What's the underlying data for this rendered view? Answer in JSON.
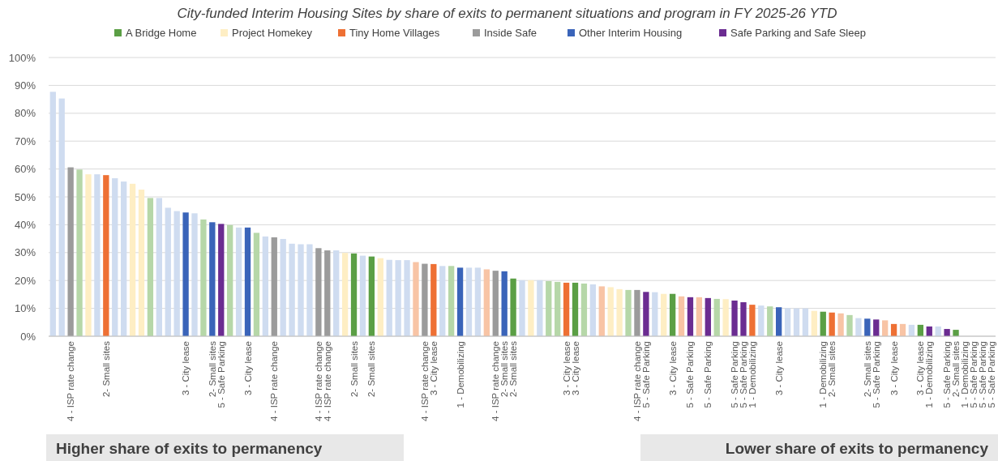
{
  "chart_data": {
    "type": "bar",
    "title": "City-funded Interim Housing Sites by share of exits to permanent situations and program in FY 2025-26 YTD",
    "categories": [
      null,
      null,
      "4 - ISP rate change",
      null,
      null,
      null,
      "2- Small sites",
      null,
      null,
      null,
      null,
      null,
      null,
      null,
      null,
      "3 - City lease",
      null,
      null,
      "2- Small sites",
      "5 - Safe Parking",
      null,
      null,
      "3 - City lease",
      null,
      null,
      "4 - ISP rate change",
      null,
      null,
      null,
      null,
      "4 - ISP rate change",
      "4 - ISP rate change",
      null,
      null,
      "2- Small sites",
      null,
      "2- Small sites",
      null,
      null,
      null,
      null,
      null,
      "4 - ISP rate change",
      "3 - City lease",
      null,
      null,
      "1 - Demobilizing",
      null,
      null,
      null,
      "4 - ISP rate change",
      "2- Small sites",
      "2- Small sites",
      null,
      null,
      null,
      null,
      null,
      "3 - City lease",
      "3 - City lease",
      null,
      null,
      null,
      null,
      null,
      null,
      "4 - ISP rate change",
      "5 - Safe Parking",
      null,
      null,
      "3 - City lease",
      null,
      "5 - Safe Parking",
      null,
      "5 - Safe Parking",
      null,
      null,
      "5 - Safe Parking",
      "5 - Safe Parking",
      "1 - Demobilizing",
      null,
      null,
      "3 - City lease",
      null,
      null,
      null,
      null,
      "1 - Demobilizing",
      "2- Small sites",
      null,
      null,
      null,
      "2- Small sites",
      "5 - Safe Parking",
      null,
      "3 - City lease",
      null,
      null,
      "3 - City lease",
      "1 - Demobilizing",
      null,
      "5 - Safe Parking",
      "2- Small sites",
      "1 - Demobilizing",
      "5 - Safe Parking",
      "5 - Safe Parking",
      "5 - Safe Parking"
    ],
    "series": [
      {
        "name": "A Bridge Home",
        "color": "#5b9f45",
        "values": [
          null,
          null,
          null,
          59.8,
          null,
          null,
          null,
          null,
          null,
          null,
          null,
          49.6,
          null,
          null,
          null,
          null,
          null,
          41.9,
          null,
          null,
          39.9,
          null,
          null,
          37.1,
          null,
          null,
          null,
          null,
          null,
          null,
          null,
          null,
          null,
          null,
          29.7,
          null,
          28.6,
          null,
          null,
          null,
          null,
          null,
          null,
          null,
          null,
          25.2,
          null,
          null,
          null,
          null,
          null,
          null,
          20.7,
          null,
          null,
          null,
          19.8,
          19.5,
          null,
          19.2,
          18.9,
          null,
          null,
          null,
          null,
          16.6,
          null,
          null,
          null,
          null,
          15.2,
          null,
          null,
          null,
          null,
          13.4,
          null,
          null,
          null,
          null,
          null,
          10.7,
          null,
          null,
          null,
          null,
          null,
          8.8,
          null,
          null,
          7.6,
          null,
          null,
          null,
          null,
          null,
          null,
          null,
          4.1,
          null,
          null,
          null,
          2.3,
          0,
          null,
          null,
          null
        ],
        "colors": [
          null,
          null,
          null,
          "#b6d7a8",
          null,
          null,
          null,
          null,
          null,
          null,
          null,
          "#b6d7a8",
          null,
          null,
          null,
          null,
          null,
          "#b6d7a8",
          null,
          null,
          "#b6d7a8",
          null,
          null,
          "#b6d7a8",
          null,
          null,
          null,
          null,
          null,
          null,
          null,
          null,
          null,
          null,
          "#5b9f45",
          null,
          "#5b9f45",
          null,
          null,
          null,
          null,
          null,
          null,
          null,
          null,
          "#b6d7a8",
          null,
          null,
          null,
          null,
          null,
          null,
          "#5b9f45",
          null,
          null,
          null,
          "#b6d7a8",
          "#b6d7a8",
          null,
          "#5b9f45",
          "#b6d7a8",
          null,
          null,
          null,
          null,
          "#b6d7a8",
          null,
          null,
          null,
          null,
          "#5b9f45",
          null,
          null,
          null,
          null,
          "#b6d7a8",
          null,
          null,
          null,
          null,
          null,
          "#b6d7a8",
          null,
          null,
          null,
          null,
          null,
          "#5b9f45",
          null,
          null,
          "#b6d7a8",
          null,
          null,
          null,
          null,
          null,
          null,
          null,
          "#5b9f45",
          null,
          null,
          null,
          "#5b9f45",
          "#5b9f45",
          null,
          null,
          null
        ]
      },
      {
        "name": "Project Homekey",
        "color": "#feeec4",
        "values": [
          null,
          null,
          null,
          null,
          58.1,
          null,
          null,
          null,
          null,
          54.7,
          52.6,
          null,
          null,
          null,
          null,
          null,
          null,
          null,
          null,
          null,
          null,
          null,
          null,
          null,
          null,
          null,
          null,
          null,
          null,
          null,
          null,
          null,
          null,
          29.9,
          null,
          null,
          null,
          28.0,
          null,
          null,
          null,
          null,
          null,
          null,
          null,
          null,
          null,
          null,
          null,
          null,
          null,
          null,
          null,
          null,
          20.1,
          null,
          null,
          null,
          null,
          null,
          null,
          null,
          null,
          17.6,
          16.9,
          null,
          null,
          null,
          null,
          15.2,
          null,
          null,
          null,
          null,
          null,
          null,
          13.3,
          null,
          null,
          null,
          null,
          null,
          null,
          null,
          null,
          null,
          9.1,
          null,
          null,
          null,
          null,
          null,
          null,
          null,
          null,
          null,
          null,
          null,
          null,
          null,
          null,
          null,
          null,
          null,
          null,
          null,
          null
        ],
        "colors": [
          null,
          null,
          null,
          null,
          "#feeec4",
          null,
          null,
          null,
          null,
          "#feeec4",
          "#feeec4",
          null,
          null,
          null,
          null,
          null,
          null,
          null,
          null,
          null,
          null,
          null,
          null,
          null,
          null,
          null,
          null,
          null,
          null,
          null,
          null,
          null,
          null,
          "#feeec4",
          null,
          null,
          null,
          "#feeec4",
          null,
          null,
          null,
          null,
          null,
          null,
          null,
          null,
          null,
          null,
          null,
          null,
          null,
          null,
          null,
          null,
          "#feeec4",
          null,
          null,
          null,
          null,
          null,
          null,
          null,
          null,
          "#feeec4",
          "#feeec4",
          null,
          null,
          null,
          null,
          "#feeec4",
          null,
          null,
          null,
          null,
          null,
          null,
          "#feeec4",
          null,
          null,
          null,
          null,
          null,
          null,
          null,
          null,
          null,
          "#feeec4",
          null,
          null,
          null,
          null,
          null,
          null,
          null,
          null,
          null,
          null,
          null,
          null,
          null,
          null,
          null,
          null,
          null,
          null,
          null,
          null
        ]
      },
      {
        "name": "Tiny Home Villages",
        "color": "#ee7034",
        "values": [
          null,
          null,
          null,
          null,
          null,
          null,
          57.8,
          null,
          null,
          null,
          null,
          null,
          null,
          null,
          null,
          null,
          null,
          null,
          null,
          null,
          null,
          null,
          null,
          null,
          null,
          null,
          null,
          null,
          null,
          null,
          null,
          null,
          null,
          null,
          null,
          null,
          null,
          null,
          null,
          null,
          null,
          26.6,
          null,
          25.9,
          null,
          null,
          null,
          null,
          null,
          24.0,
          null,
          null,
          null,
          null,
          null,
          null,
          null,
          null,
          19.2,
          null,
          null,
          null,
          17.9,
          null,
          null,
          null,
          null,
          null,
          null,
          null,
          null,
          14.3,
          null,
          14.0,
          null,
          null,
          null,
          null,
          null,
          11.3,
          null,
          null,
          null,
          null,
          null,
          null,
          null,
          null,
          8.5,
          8.2,
          null,
          null,
          null,
          null,
          5.7,
          4.4,
          4.4,
          null,
          null,
          null,
          null,
          null,
          null,
          null,
          null,
          null,
          null
        ],
        "colors": [
          null,
          null,
          null,
          null,
          null,
          null,
          "#ee7034",
          null,
          null,
          null,
          null,
          null,
          null,
          null,
          null,
          null,
          null,
          null,
          null,
          null,
          null,
          null,
          null,
          null,
          null,
          null,
          null,
          null,
          null,
          null,
          null,
          null,
          null,
          null,
          null,
          null,
          null,
          null,
          null,
          null,
          null,
          "#f8c4a5",
          null,
          "#ee7034",
          null,
          null,
          null,
          null,
          null,
          "#f8c4a5",
          null,
          null,
          null,
          null,
          null,
          null,
          null,
          null,
          "#ee7034",
          null,
          null,
          null,
          "#f8c4a5",
          null,
          null,
          null,
          null,
          null,
          null,
          null,
          null,
          "#f8c4a5",
          null,
          "#f8c4a5",
          null,
          null,
          null,
          null,
          null,
          "#ee7034",
          null,
          null,
          null,
          null,
          null,
          null,
          null,
          null,
          "#ee7034",
          "#f8c4a5",
          null,
          null,
          null,
          null,
          "#f8c4a5",
          "#ee7034",
          "#f8c4a5",
          null,
          null,
          null,
          null,
          null,
          null,
          null,
          null,
          null,
          null
        ]
      },
      {
        "name": "Inside Safe",
        "color": "#9b9b9b",
        "values": [
          null,
          null,
          60.6,
          null,
          null,
          null,
          null,
          null,
          null,
          null,
          null,
          null,
          null,
          null,
          null,
          null,
          null,
          null,
          null,
          null,
          null,
          null,
          null,
          null,
          null,
          35.5,
          null,
          null,
          null,
          null,
          31.6,
          30.8,
          null,
          null,
          null,
          null,
          null,
          null,
          null,
          null,
          null,
          null,
          26.0,
          null,
          null,
          null,
          null,
          null,
          null,
          null,
          23.5,
          null,
          null,
          null,
          null,
          null,
          null,
          null,
          null,
          null,
          null,
          null,
          null,
          null,
          null,
          null,
          16.6,
          null,
          null,
          null,
          null,
          null,
          null,
          null,
          null,
          null,
          null,
          null,
          null,
          null,
          null,
          null,
          null,
          null,
          null,
          null,
          null,
          null,
          null,
          null,
          null,
          null,
          null,
          null,
          null,
          null,
          null,
          null,
          null,
          null,
          null,
          null,
          null,
          null,
          null,
          null,
          null
        ]
      },
      {
        "name": "Other Interim Housing",
        "color": "#3a64b9",
        "values": [
          87.7,
          85.3,
          null,
          null,
          null,
          58.1,
          null,
          56.7,
          55.5,
          null,
          null,
          null,
          49.6,
          46.1,
          44.9,
          44.4,
          44.1,
          null,
          40.9,
          null,
          null,
          39.0,
          39.0,
          null,
          35.8,
          null,
          34.9,
          33.2,
          33.0,
          33.0,
          null,
          null,
          30.8,
          null,
          null,
          28.9,
          null,
          null,
          27.4,
          27.3,
          27.3,
          null,
          null,
          null,
          25.2,
          null,
          24.6,
          24.6,
          24.6,
          null,
          null,
          23.3,
          null,
          20.1,
          null,
          20.1,
          null,
          null,
          null,
          null,
          null,
          18.6,
          null,
          null,
          null,
          null,
          null,
          null,
          15.8,
          null,
          null,
          null,
          null,
          null,
          null,
          null,
          null,
          null,
          null,
          null,
          11.0,
          null,
          10.4,
          10.1,
          10.0,
          10.0,
          null,
          null,
          null,
          null,
          null,
          6.5,
          6.3,
          null,
          null,
          null,
          null,
          4.1,
          null,
          null,
          3.5,
          null,
          null,
          null,
          null,
          null,
          null
        ],
        "colors": [
          "#cfdcf0",
          "#cfdcf0",
          null,
          null,
          null,
          "#cfdcf0",
          null,
          "#cfdcf0",
          "#cfdcf0",
          null,
          null,
          null,
          "#cfdcf0",
          "#cfdcf0",
          "#cfdcf0",
          "#3a64b9",
          "#cfdcf0",
          null,
          "#3a64b9",
          null,
          null,
          "#cfdcf0",
          "#3a64b9",
          null,
          "#cfdcf0",
          null,
          "#cfdcf0",
          "#cfdcf0",
          "#cfdcf0",
          "#cfdcf0",
          null,
          null,
          "#cfdcf0",
          null,
          null,
          "#cfdcf0",
          null,
          null,
          "#cfdcf0",
          "#cfdcf0",
          "#cfdcf0",
          null,
          null,
          null,
          "#cfdcf0",
          null,
          "#3a64b9",
          "#cfdcf0",
          "#cfdcf0",
          null,
          null,
          "#3a64b9",
          null,
          "#cfdcf0",
          null,
          "#cfdcf0",
          null,
          null,
          null,
          null,
          null,
          "#cfdcf0",
          null,
          null,
          null,
          null,
          null,
          null,
          "#cfdcf0",
          null,
          null,
          null,
          null,
          null,
          null,
          null,
          null,
          null,
          null,
          null,
          "#cfdcf0",
          null,
          "#3a64b9",
          "#cfdcf0",
          "#cfdcf0",
          "#cfdcf0",
          null,
          null,
          null,
          null,
          null,
          "#cfdcf0",
          "#3a64b9",
          null,
          null,
          null,
          null,
          "#cfdcf0",
          null,
          null,
          "#cfdcf0",
          null,
          null,
          null,
          null,
          null,
          null
        ]
      },
      {
        "name": "Safe Parking and Safe Sleep",
        "color": "#6b2c91",
        "values": [
          null,
          null,
          null,
          null,
          null,
          null,
          null,
          null,
          null,
          null,
          null,
          null,
          null,
          null,
          null,
          null,
          null,
          null,
          null,
          40.3,
          null,
          null,
          null,
          null,
          null,
          null,
          null,
          null,
          null,
          null,
          null,
          null,
          null,
          null,
          null,
          null,
          null,
          null,
          null,
          null,
          null,
          null,
          null,
          null,
          null,
          null,
          null,
          null,
          null,
          null,
          null,
          null,
          null,
          null,
          null,
          null,
          null,
          null,
          null,
          null,
          null,
          null,
          null,
          null,
          null,
          null,
          null,
          15.9,
          null,
          null,
          null,
          null,
          14.0,
          null,
          13.7,
          null,
          null,
          12.8,
          12.2,
          null,
          null,
          null,
          null,
          null,
          null,
          null,
          null,
          null,
          null,
          null,
          null,
          null,
          null,
          6.0,
          null,
          null,
          null,
          null,
          null,
          3.5,
          null,
          2.6,
          null,
          null,
          0,
          0,
          0
        ]
      }
    ],
    "stacked": true,
    "ylim": [
      0,
      100
    ],
    "yticks": [
      {
        "value": 0,
        "label": "0%"
      },
      {
        "value": 10,
        "label": "10%"
      },
      {
        "value": 20,
        "label": "20%"
      },
      {
        "value": 30,
        "label": "30%"
      },
      {
        "value": 40,
        "label": "40%"
      },
      {
        "value": 50,
        "label": "50%"
      },
      {
        "value": 60,
        "label": "60%"
      },
      {
        "value": 70,
        "label": "70%"
      },
      {
        "value": 80,
        "label": "80%"
      },
      {
        "value": 90,
        "label": "90%"
      },
      {
        "value": 100,
        "label": "100%"
      }
    ],
    "grid": "y",
    "legend": "top",
    "annotations": [
      "Higher share of exits to permanency",
      "Lower share of exits to permanency"
    ]
  }
}
